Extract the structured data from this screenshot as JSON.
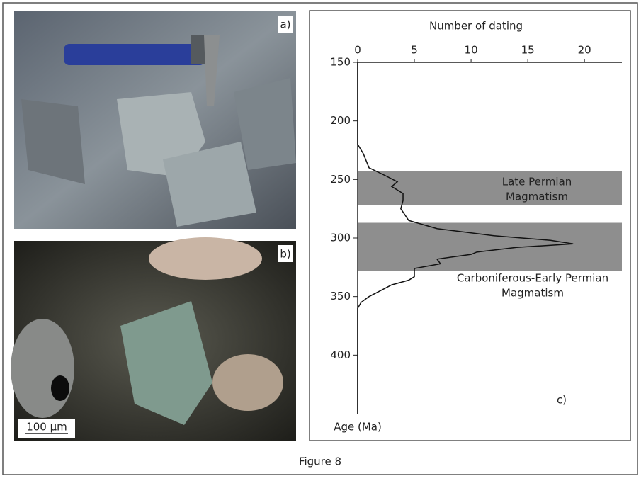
{
  "figure": {
    "caption": "Figure 8",
    "panel_labels": [
      "a)",
      "b)",
      "c)"
    ],
    "scale_bar": "100 µm"
  },
  "chart_data": {
    "type": "line",
    "orientation": "vertical",
    "x_label": "Number of dating",
    "y_label": "Age (Ma)",
    "xlim": [
      0,
      23.3
    ],
    "xticks": [
      0,
      5,
      10,
      15,
      20
    ],
    "ylim": [
      150,
      450
    ],
    "yticks": [
      150,
      200,
      250,
      300,
      350,
      400
    ],
    "y_inverted": true,
    "color": "#111111",
    "x": [
      150,
      220,
      228,
      240,
      247,
      252,
      256,
      262,
      268,
      275,
      285,
      292,
      298,
      302,
      305,
      308,
      312,
      314,
      318,
      322,
      326,
      333,
      336,
      340,
      345,
      350,
      355,
      360,
      450
    ],
    "values": [
      0,
      0,
      0.5,
      1,
      2.5,
      3.5,
      3,
      4,
      4,
      3.8,
      4.5,
      7,
      12,
      17,
      19,
      14,
      10.5,
      10,
      7,
      7.3,
      5,
      5,
      4.5,
      3,
      2,
      1,
      0.3,
      0,
      0
    ],
    "band_color": "#8e8e8e",
    "bands": [
      {
        "from": 243,
        "to": 272,
        "label": [
          "Late Permian",
          "Magmatism"
        ]
      },
      {
        "from": 287,
        "to": 328,
        "label": [
          "Carboniferous-Early Permian",
          "Magmatism"
        ]
      }
    ]
  }
}
